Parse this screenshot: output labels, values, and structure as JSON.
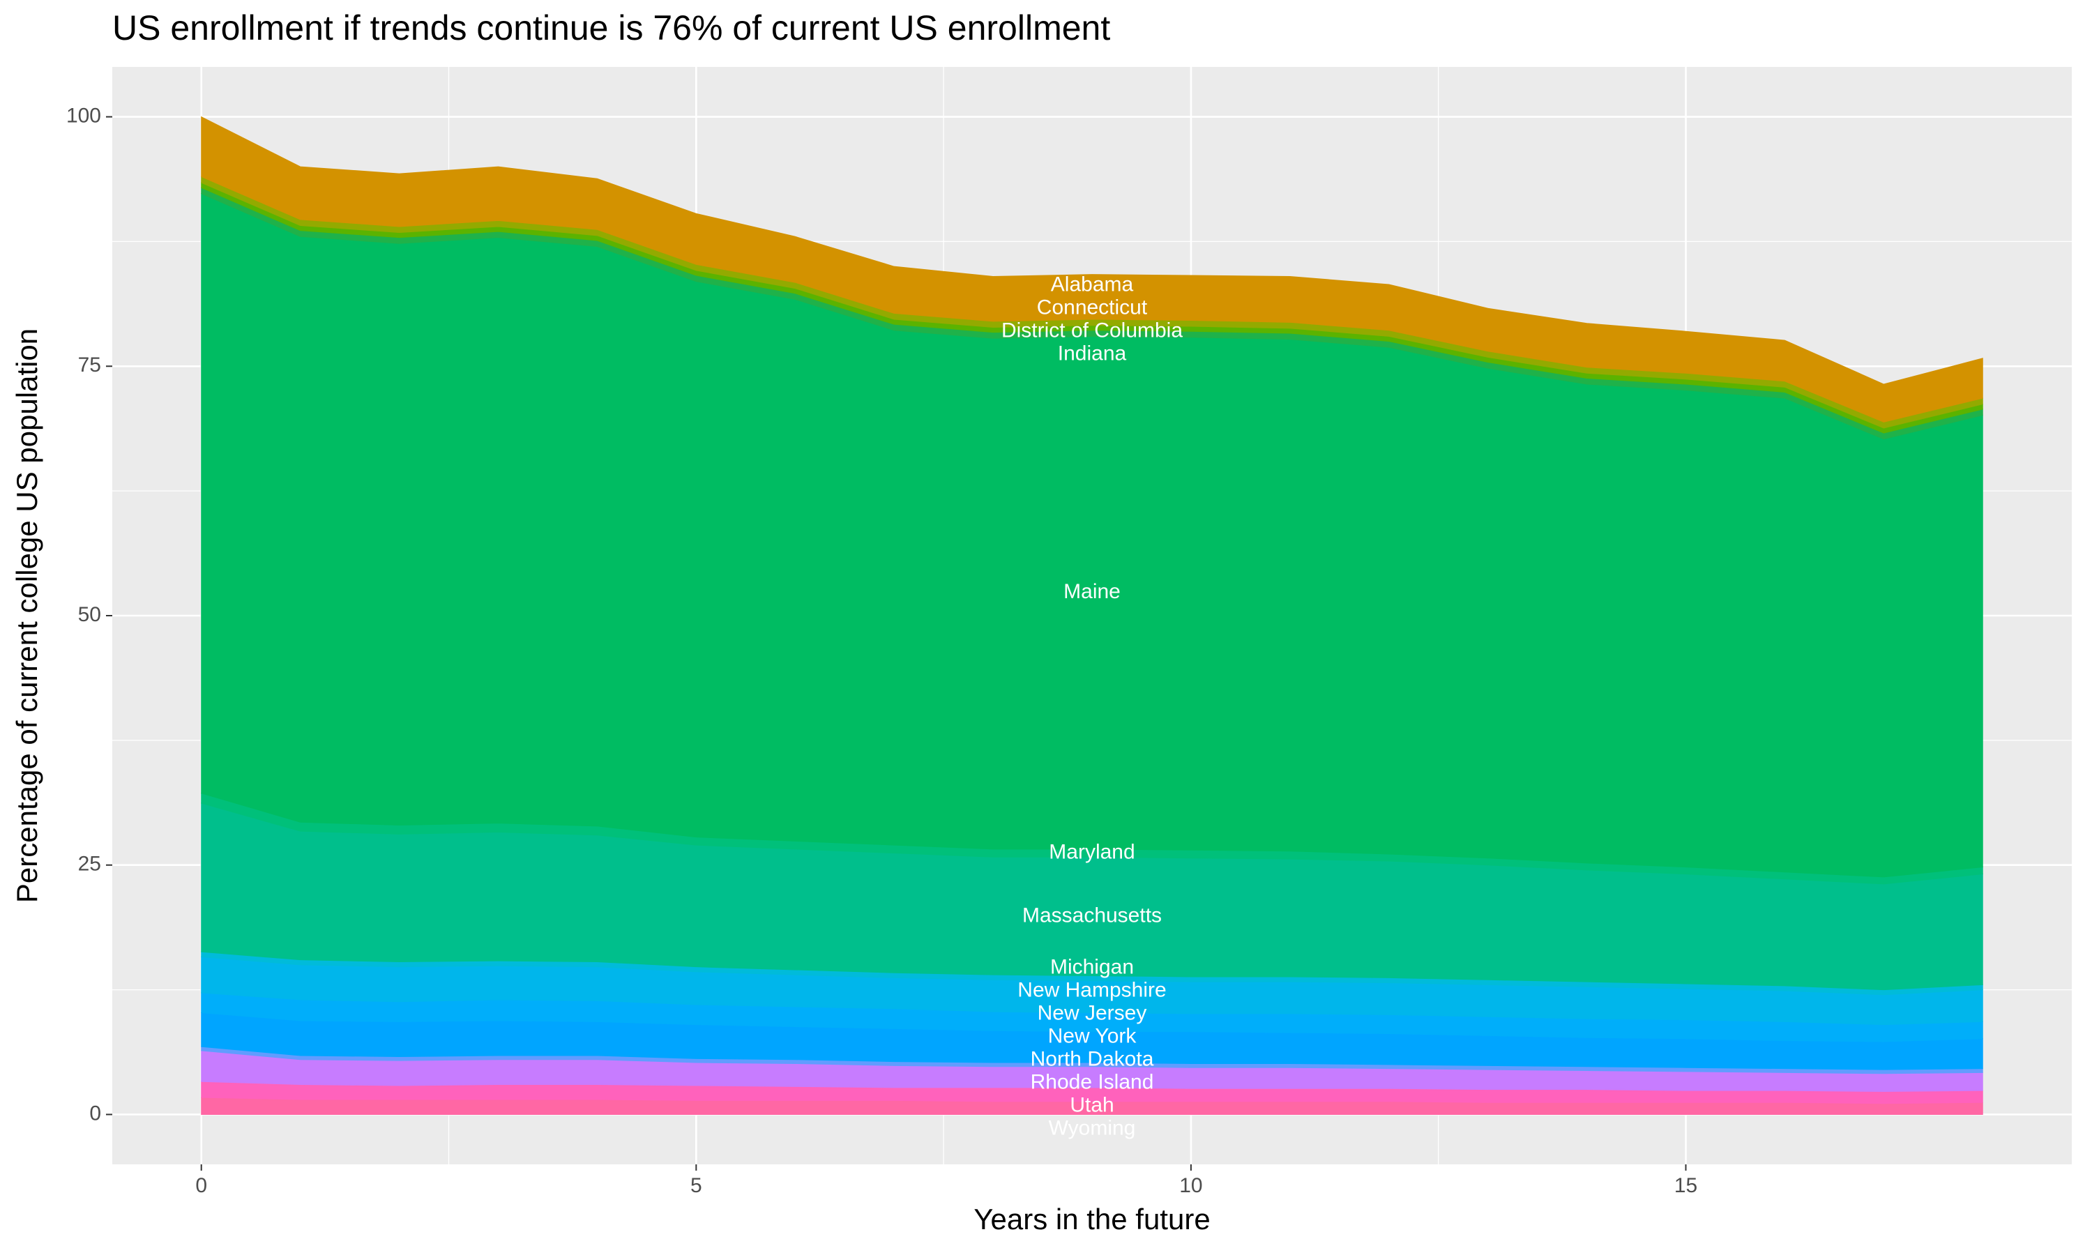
{
  "chart_data": {
    "type": "stacked_area",
    "title": "US enrollment if trends continue is 76% of current US enrollment",
    "x_label": "Years in the future",
    "y_label": "Percentage of current college US population",
    "x": [
      0,
      1,
      2,
      3,
      4,
      5,
      6,
      7,
      8,
      9,
      10,
      11,
      12,
      13,
      14,
      15,
      16,
      17,
      18
    ],
    "xlim": [
      -0.9,
      18.9
    ],
    "xticks": [
      0,
      5,
      10,
      15
    ],
    "ylim": [
      -5,
      105
    ],
    "yticks": [
      0,
      25,
      50,
      75,
      100
    ],
    "grid": true,
    "label_x": 9,
    "series": [
      {
        "name": "Wyoming",
        "color": "#FF67A4",
        "values": [
          1.7,
          1.5,
          1.5,
          1.5,
          1.5,
          1.4,
          1.4,
          1.4,
          1.3,
          1.3,
          1.3,
          1.3,
          1.3,
          1.2,
          1.2,
          1.2,
          1.2,
          1.1,
          1.2
        ]
      },
      {
        "name": "Utah",
        "color": "#FF62BC",
        "values": [
          1.6,
          1.5,
          1.4,
          1.5,
          1.5,
          1.5,
          1.4,
          1.3,
          1.4,
          1.4,
          1.3,
          1.3,
          1.3,
          1.3,
          1.3,
          1.2,
          1.2,
          1.2,
          1.2
        ]
      },
      {
        "name": "Rhode Island",
        "color": "#C77CFF",
        "values": [
          3.1,
          2.5,
          2.5,
          2.5,
          2.5,
          2.3,
          2.3,
          2.2,
          2.1,
          2.1,
          2.1,
          2.1,
          2.0,
          2.0,
          1.9,
          1.9,
          1.8,
          1.8,
          1.8
        ]
      },
      {
        "name": "North Dakota",
        "color": "#619CFF",
        "values": [
          0.4,
          0.4,
          0.4,
          0.4,
          0.4,
          0.4,
          0.4,
          0.4,
          0.4,
          0.4,
          0.4,
          0.4,
          0.4,
          0.4,
          0.4,
          0.4,
          0.4,
          0.4,
          0.4
        ]
      },
      {
        "name": "New York",
        "color": "#00A5FF",
        "values": [
          3.4,
          3.5,
          3.5,
          3.5,
          3.4,
          3.4,
          3.3,
          3.3,
          3.2,
          3.1,
          3.2,
          3.1,
          3.1,
          3.0,
          2.9,
          2.9,
          2.8,
          2.8,
          3.0
        ]
      },
      {
        "name": "New Jersey",
        "color": "#00AEFA",
        "values": [
          2.0,
          2.1,
          2.0,
          2.1,
          2.1,
          2.0,
          2.0,
          2.0,
          1.9,
          1.9,
          1.8,
          1.9,
          1.9,
          1.9,
          1.9,
          1.9,
          1.9,
          1.7,
          1.7
        ]
      },
      {
        "name": "New Hampshire",
        "color": "#00B6EB",
        "values": [
          3.6,
          3.5,
          3.5,
          3.4,
          3.4,
          3.3,
          3.2,
          3.1,
          3.2,
          3.2,
          3.2,
          3.2,
          3.2,
          3.2,
          3.2,
          3.1,
          3.1,
          3.0,
          3.2
        ]
      },
      {
        "name": "Michigan",
        "color": "#00BBDA",
        "values": [
          0.5,
          0.5,
          0.5,
          0.5,
          0.5,
          0.5,
          0.5,
          0.5,
          0.5,
          0.5,
          0.5,
          0.5,
          0.5,
          0.5,
          0.5,
          0.5,
          0.5,
          0.5,
          0.5
        ]
      },
      {
        "name": "Massachusetts",
        "color": "#00BF8C",
        "values": [
          14.9,
          12.9,
          12.8,
          12.9,
          12.7,
          12.2,
          12.1,
          12.0,
          11.8,
          11.9,
          11.9,
          11.8,
          11.7,
          11.5,
          11.2,
          11.0,
          10.7,
          10.6,
          11.1
        ]
      },
      {
        "name": "Maryland",
        "color": "#00C07A",
        "values": [
          1.0,
          0.9,
          0.9,
          0.9,
          0.9,
          0.8,
          0.8,
          0.8,
          0.8,
          0.8,
          0.8,
          0.8,
          0.7,
          0.7,
          0.7,
          0.7,
          0.7,
          0.7,
          0.7
        ]
      },
      {
        "name": "Maine",
        "color": "#00BC62",
        "values": [
          60.1,
          58.7,
          58.3,
          58.7,
          58.1,
          55.7,
          54.3,
          51.6,
          51.2,
          51.4,
          51.4,
          51.3,
          50.8,
          49.1,
          48.0,
          47.8,
          47.5,
          43.9,
          45.3
        ]
      },
      {
        "name": "Indiana",
        "color": "#1FB24A",
        "values": [
          0.6,
          0.6,
          0.6,
          0.6,
          0.6,
          0.6,
          0.6,
          0.6,
          0.6,
          0.6,
          0.6,
          0.6,
          0.6,
          0.6,
          0.6,
          0.6,
          0.6,
          0.6,
          0.6
        ]
      },
      {
        "name": "District of Columbia",
        "color": "#5BB300",
        "values": [
          0.5,
          0.5,
          0.5,
          0.5,
          0.5,
          0.5,
          0.5,
          0.5,
          0.5,
          0.5,
          0.5,
          0.5,
          0.5,
          0.5,
          0.5,
          0.5,
          0.5,
          0.5,
          0.5
        ]
      },
      {
        "name": "Connecticut",
        "color": "#93AA00",
        "values": [
          0.6,
          0.6,
          0.6,
          0.6,
          0.6,
          0.6,
          0.6,
          0.6,
          0.6,
          0.6,
          0.6,
          0.6,
          0.6,
          0.6,
          0.6,
          0.6,
          0.6,
          0.6,
          0.6
        ]
      },
      {
        "name": "Alabama",
        "color": "#D39200",
        "values": [
          6.0,
          5.3,
          5.3,
          5.4,
          5.1,
          5.1,
          4.6,
          4.7,
          4.5,
          4.5,
          4.5,
          4.6,
          4.6,
          4.3,
          4.4,
          4.2,
          4.1,
          3.8,
          4.0
        ]
      }
    ]
  }
}
